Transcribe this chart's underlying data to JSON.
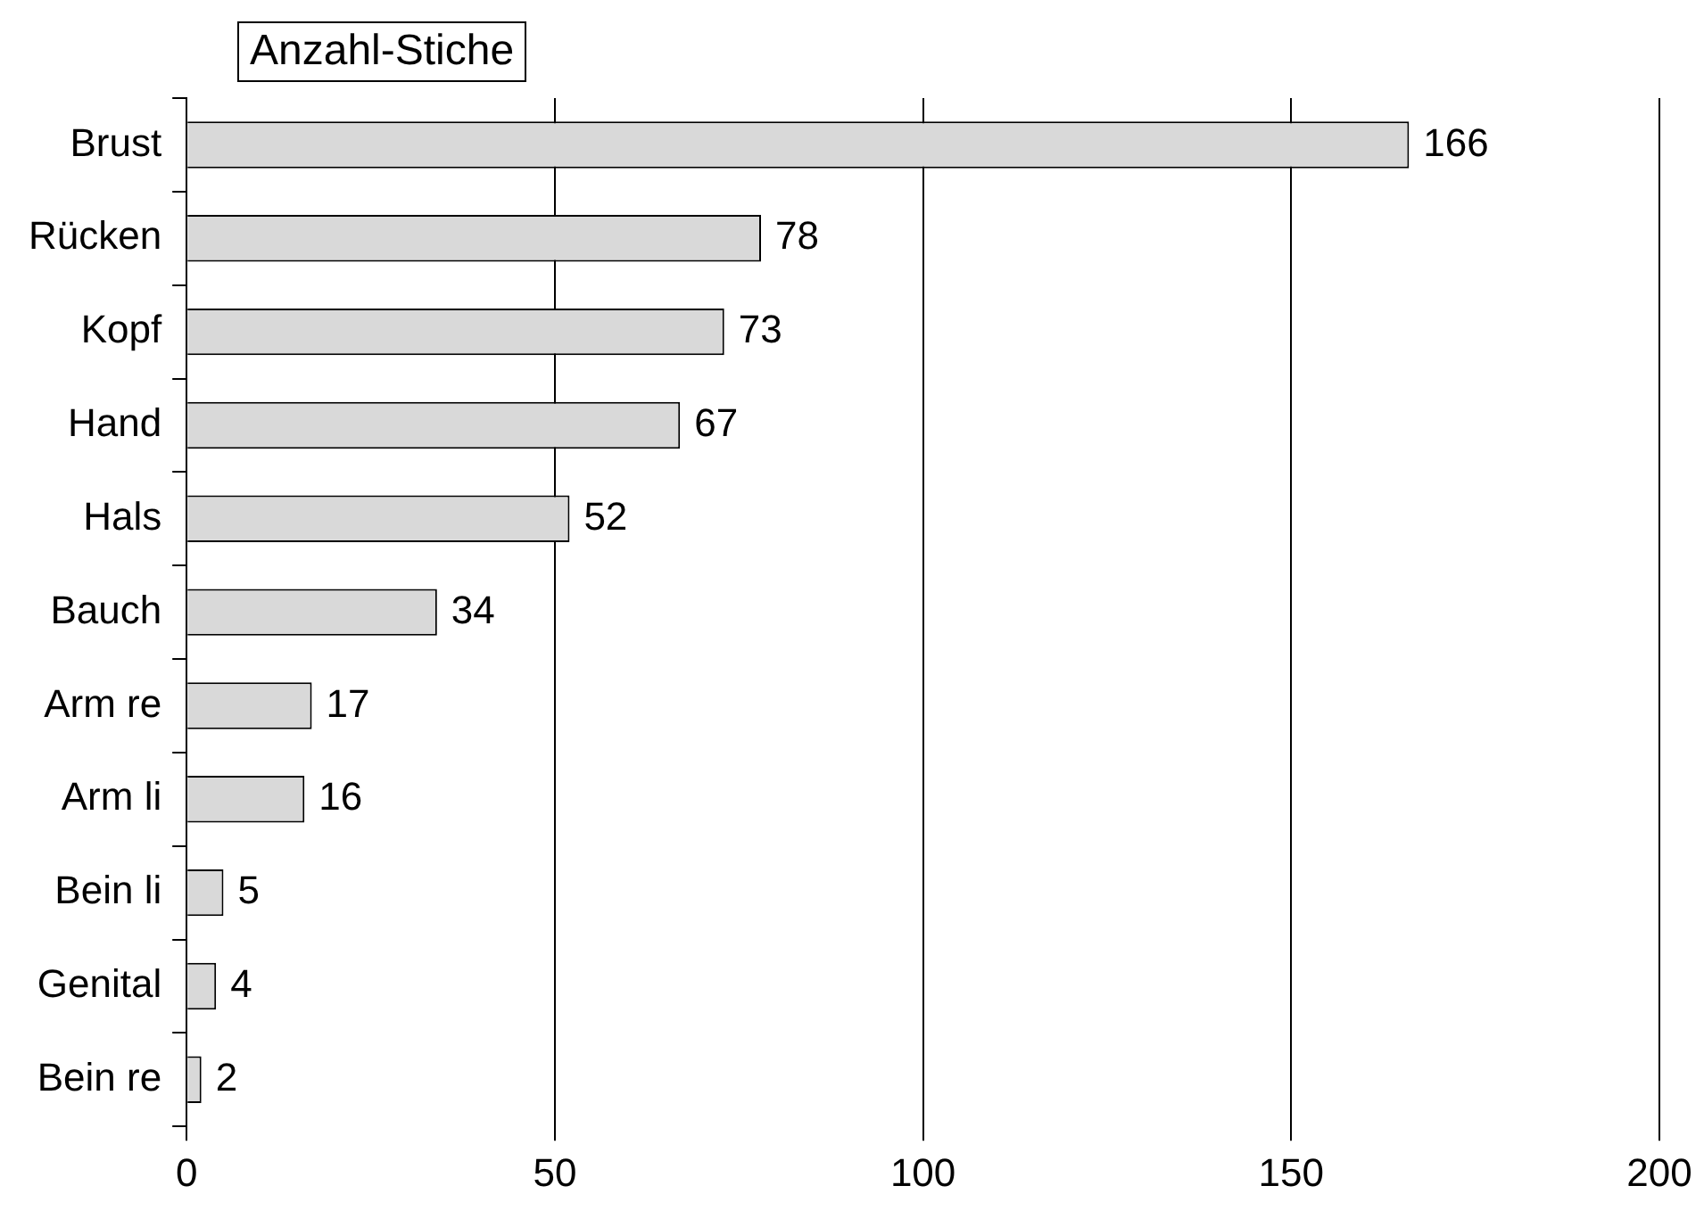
{
  "chart_data": {
    "type": "bar",
    "orientation": "horizontal",
    "title": "Anzahl-Stiche",
    "categories": [
      "Brust",
      "Rücken",
      "Kopf",
      "Hand",
      "Hals",
      "Bauch",
      "Arm re",
      "Arm li",
      "Bein li",
      "Genital",
      "Bein re"
    ],
    "values": [
      166,
      78,
      73,
      67,
      52,
      34,
      17,
      16,
      5,
      4,
      2
    ],
    "color": "#d9d9d9",
    "xlim": [
      0,
      200
    ],
    "xticks": [
      0,
      50,
      100,
      150,
      200
    ],
    "grid": "x",
    "legend": false,
    "data_labels": true
  }
}
